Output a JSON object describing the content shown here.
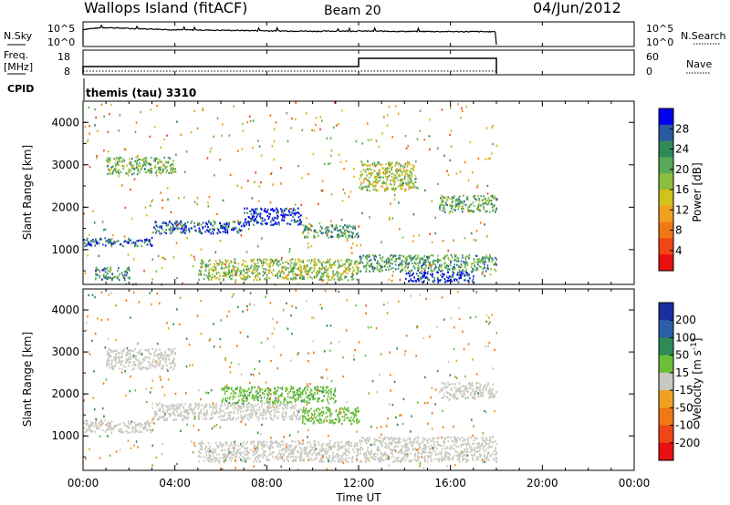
{
  "header": {
    "station": "Wallops Island (fitACF)",
    "beam": "Beam 20",
    "date": "04/Jun/2012"
  },
  "nsky_panel": {
    "left_label": "N.Sky",
    "right_label": "N.Search",
    "left_ticks": [
      "10^5",
      "10^0"
    ],
    "right_ticks": [
      "10^5",
      "10^0"
    ],
    "color": "#000000"
  },
  "freq_panel": {
    "left_label_line1": "Freq.",
    "left_label_line2": "[MHz]",
    "right_label": "Nave",
    "left_ticks": [
      "18",
      "8"
    ],
    "right_ticks": [
      "60",
      "0"
    ],
    "freq_mhz": {
      "x_hours": [
        0.0,
        12.0,
        12.0,
        18.0
      ],
      "values": [
        10.5,
        10.5,
        15.0,
        15.0
      ]
    },
    "nave": {
      "value": 0
    }
  },
  "cpid": {
    "label": "CPID",
    "text": "themis (tau) 3310"
  },
  "power_panel": {
    "ylabel": "Slant Range [km]",
    "yticks": [
      "1000",
      "2000",
      "3000",
      "4000"
    ],
    "colorbar_label": "Power [dB]",
    "colorbar_ticks": [
      "4",
      "8",
      "12",
      "16",
      "20",
      "24",
      "28"
    ],
    "colorbar_colors": [
      "#0000ee",
      "#2a5aa0",
      "#2e8b57",
      "#5aa85a",
      "#8cbf3f",
      "#cfc21a",
      "#f0a020",
      "#f07814",
      "#f04616",
      "#e81010"
    ]
  },
  "velocity_panel": {
    "ylabel": "Slant Range [km]",
    "yticks": [
      "1000",
      "2000",
      "3000",
      "4000"
    ],
    "colorbar_label": "Velocity [m s^-1]",
    "colorbar_ticks": [
      "200",
      "100",
      "50",
      "15",
      "-15",
      "-50",
      "-100",
      "-200"
    ],
    "colorbar_colors": [
      "#1a2fa0",
      "#2b5fa8",
      "#2e8b57",
      "#6bbf3a",
      "#c8c8c0",
      "#f0a020",
      "#f07814",
      "#f04616",
      "#e81010"
    ]
  },
  "time_axis": {
    "label": "Time UT",
    "ticks": [
      "00:00",
      "04:00",
      "08:00",
      "12:00",
      "16:00",
      "20:00",
      "00:00"
    ]
  },
  "chart_data": [
    {
      "type": "line",
      "title": "Wallops Island (fitACF) Beam 20 04/Jun/2012",
      "series": [
        {
          "name": "N.Sky",
          "x_hours": [
            0,
            1,
            2,
            4,
            6,
            8,
            10,
            12,
            14,
            16,
            18
          ],
          "values": [
            3000,
            8000,
            5000,
            2500,
            2000,
            1500,
            1200,
            1300,
            1100,
            1000,
            900
          ]
        },
        {
          "name": "Freq.",
          "x_hours": [
            0,
            12,
            12,
            18
          ],
          "values": [
            10.5,
            10.5,
            15.0,
            15.0
          ]
        }
      ],
      "xlabel": "Time UT",
      "xlim_hours": [
        0,
        24
      ],
      "data_end_hour": 18
    },
    {
      "type": "heatmap",
      "panel": "power",
      "xlabel": "Time UT",
      "ylabel": "Slant Range [km]",
      "zlabel": "Power [dB]",
      "xlim_hours": [
        0,
        24
      ],
      "ylim_km": [
        180,
        4500
      ],
      "zlim": [
        0,
        32
      ],
      "data_end_hour": 18,
      "bands": [
        {
          "t": [
            0.0,
            3.0
          ],
          "r": [
            1100,
            1300
          ],
          "level": 26
        },
        {
          "t": [
            3.0,
            7.0
          ],
          "r": [
            1400,
            1700
          ],
          "level": 27
        },
        {
          "t": [
            7.0,
            9.5
          ],
          "r": [
            1600,
            2000
          ],
          "level": 29
        },
        {
          "t": [
            9.5,
            12.0
          ],
          "r": [
            1300,
            1600
          ],
          "level": 22
        },
        {
          "t": [
            0.5,
            2.0
          ],
          "r": [
            300,
            600
          ],
          "level": 24
        },
        {
          "t": [
            5.0,
            12.0
          ],
          "r": [
            300,
            800
          ],
          "level": 18
        },
        {
          "t": [
            12.0,
            18.0
          ],
          "r": [
            500,
            900
          ],
          "level": 22
        },
        {
          "t": [
            14.0,
            17.0
          ],
          "r": [
            250,
            500
          ],
          "level": 29
        },
        {
          "t": [
            1.0,
            4.0
          ],
          "r": [
            2800,
            3200
          ],
          "level": 20
        },
        {
          "t": [
            15.5,
            18.0
          ],
          "r": [
            1900,
            2300
          ],
          "level": 21
        },
        {
          "t": [
            12.0,
            14.5
          ],
          "r": [
            2400,
            3100
          ],
          "level": 17
        }
      ]
    },
    {
      "type": "heatmap",
      "panel": "velocity",
      "xlabel": "Time UT",
      "ylabel": "Slant Range [km]",
      "zlabel": "Velocity [m s^-1]",
      "xlim_hours": [
        0,
        24
      ],
      "ylim_km": [
        180,
        4500
      ],
      "zlim": [
        -250,
        250
      ],
      "data_end_hour": 18,
      "bands": [
        {
          "t": [
            0.0,
            3.0
          ],
          "r": [
            1100,
            1400
          ],
          "level": 0
        },
        {
          "t": [
            3.0,
            9.5
          ],
          "r": [
            1400,
            1800
          ],
          "level": 0
        },
        {
          "t": [
            9.5,
            12.0
          ],
          "r": [
            1300,
            1700
          ],
          "level": 30
        },
        {
          "t": [
            5.0,
            12.0
          ],
          "r": [
            400,
            900
          ],
          "level": 0
        },
        {
          "t": [
            12.0,
            18.0
          ],
          "r": [
            400,
            1000
          ],
          "level": 0
        },
        {
          "t": [
            1.0,
            4.0
          ],
          "r": [
            2600,
            3100
          ],
          "level": 0
        },
        {
          "t": [
            15.5,
            18.0
          ],
          "r": [
            1900,
            2300
          ],
          "level": 0
        },
        {
          "t": [
            6.0,
            11.0
          ],
          "r": [
            1800,
            2200
          ],
          "level": 40
        }
      ]
    }
  ]
}
